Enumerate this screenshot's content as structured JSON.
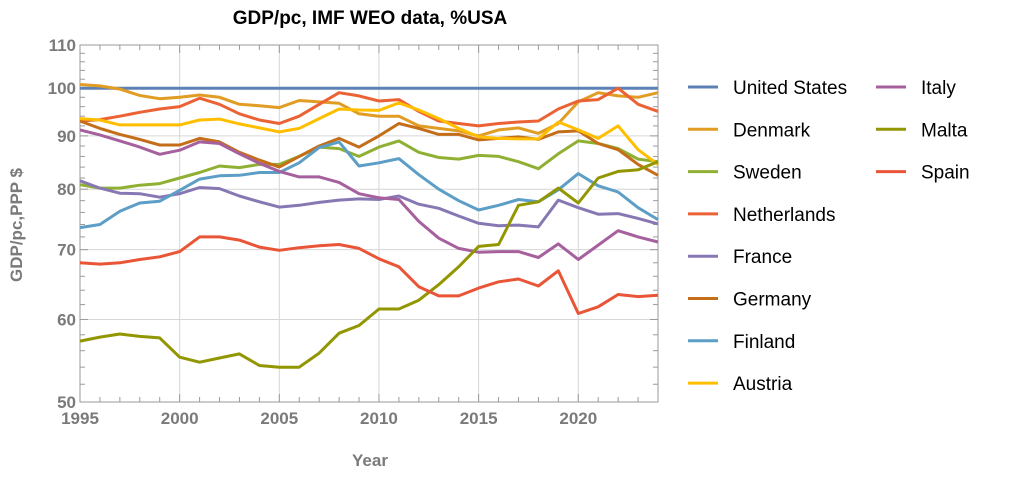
{
  "chart_data": {
    "type": "line",
    "title": "GDP/pc, IMF WEO data, %USA",
    "xlabel": "Year",
    "ylabel": "GDP/pc,PPP $",
    "xlim": [
      1995,
      2024
    ],
    "ylim": [
      50,
      110
    ],
    "yscale": "log",
    "grid": true,
    "legend_placement": "right",
    "x_ticks": [
      "1995",
      "2000",
      "2005",
      "2010",
      "2015",
      "2020"
    ],
    "y_ticks": [
      "50",
      "60",
      "70",
      "80",
      "90",
      "100",
      "110"
    ],
    "x": [
      1995,
      1996,
      1997,
      1998,
      1999,
      2000,
      2001,
      2002,
      2003,
      2004,
      2005,
      2006,
      2007,
      2008,
      2009,
      2010,
      2011,
      2012,
      2013,
      2014,
      2015,
      2016,
      2017,
      2018,
      2019,
      2020,
      2021,
      2022,
      2023,
      2024
    ],
    "series": [
      {
        "name": "United States",
        "color": "#5E81B5",
        "values": [
          100,
          100,
          100,
          100,
          100,
          100,
          100,
          100,
          100,
          100,
          100,
          100,
          100,
          100,
          100,
          100,
          100,
          100,
          100,
          100,
          100,
          100,
          100,
          100,
          100,
          100,
          100,
          100,
          100,
          100
        ]
      },
      {
        "name": "Denmark",
        "color": "#E19C24",
        "values": [
          100.8,
          100.5,
          99.8,
          98.4,
          97.7,
          98,
          98.5,
          98,
          96.5,
          96.2,
          95.8,
          97.3,
          97,
          96.7,
          94.5,
          94,
          94,
          92,
          91.5,
          91,
          90,
          91.2,
          91.6,
          90.5,
          92.5,
          97,
          99,
          98.3,
          98,
          99
        ]
      },
      {
        "name": "Sweden",
        "color": "#8FB032",
        "values": [
          80.8,
          80.2,
          80.2,
          80.7,
          81,
          82,
          83,
          84.2,
          83.9,
          84.5,
          84.5,
          86,
          87.8,
          87.5,
          86,
          87.8,
          89,
          86.8,
          85.8,
          85.5,
          86.2,
          86,
          85,
          83.7,
          86.5,
          89,
          88.5,
          87.5,
          85.5,
          85
        ]
      },
      {
        "name": "Netherlands",
        "color": "#EB6235",
        "values": [
          93,
          93.3,
          94,
          94.8,
          95.5,
          96,
          97.8,
          96.5,
          94.5,
          93.2,
          92.5,
          94,
          96.5,
          99,
          98.3,
          97.2,
          97.5,
          95,
          93,
          92.5,
          92,
          92.5,
          92.8,
          93,
          95.5,
          97.2,
          97.5,
          100,
          96.5,
          95
        ]
      },
      {
        "name": "France",
        "color": "#8778B3",
        "values": [
          81.5,
          80.2,
          79.3,
          79.2,
          78.6,
          79.2,
          80.3,
          80.1,
          78.8,
          77.8,
          76.9,
          77.2,
          77.7,
          78.1,
          78.3,
          78.2,
          78.8,
          77.4,
          76.7,
          75.4,
          74.2,
          73.8,
          73.9,
          73.6,
          78.1,
          76.8,
          75.7,
          75.8,
          75,
          74.1
        ]
      },
      {
        "name": "Germany",
        "color": "#C56E1A",
        "values": [
          93,
          91.5,
          90.3,
          89.3,
          88.2,
          88.2,
          89.5,
          88.8,
          86.8,
          85.3,
          84,
          86,
          88,
          89.5,
          87.8,
          90,
          92.5,
          91.5,
          90.3,
          90.3,
          89.2,
          89.5,
          89.8,
          89.3,
          90.8,
          91,
          88.5,
          87.3,
          84.5,
          82.5
        ]
      },
      {
        "name": "Finland",
        "color": "#5D9EC7",
        "values": [
          73.5,
          74,
          76.2,
          77.6,
          77.9,
          79.8,
          81.8,
          82.4,
          82.5,
          83,
          83,
          84.8,
          87.7,
          88.8,
          84.2,
          84.8,
          85.6,
          82.6,
          80,
          78,
          76.4,
          77.2,
          78.2,
          77.8,
          79.9,
          82.8,
          80.6,
          79.5,
          76.8,
          74.8
        ]
      },
      {
        "name": "Austria",
        "color": "#FFBF00",
        "values": [
          93.5,
          93.2,
          92.2,
          92.2,
          92.2,
          92.2,
          93.2,
          93.4,
          92.4,
          91.6,
          90.8,
          91.5,
          93.5,
          95.5,
          95.3,
          95.2,
          96.8,
          95.3,
          93.5,
          91.5,
          89.8,
          89.5,
          89.4,
          89.4,
          92.8,
          91.2,
          89.5,
          92,
          87.3,
          84.5
        ]
      },
      {
        "name": "Italy",
        "color": "#A5609D",
        "values": [
          91.2,
          90.2,
          89,
          87.8,
          86.4,
          87.2,
          88.8,
          88.5,
          86.5,
          84.7,
          83.2,
          82.2,
          82.2,
          81.2,
          79.2,
          78.5,
          78.2,
          74.5,
          71.8,
          70.2,
          69.6,
          69.7,
          69.7,
          68.8,
          70.9,
          68.5,
          70.7,
          73,
          72,
          71.2
        ]
      },
      {
        "name": "Malta",
        "color": "#929600",
        "values": [
          57.2,
          57.7,
          58.1,
          57.8,
          57.6,
          55.2,
          54.6,
          55.1,
          55.6,
          54.2,
          54,
          54,
          55.7,
          58.2,
          59.2,
          61.4,
          61.4,
          62.6,
          64.8,
          67.4,
          70.5,
          70.8,
          77.2,
          77.8,
          80.2,
          77.6,
          82,
          83.2,
          83.5,
          85
        ]
      },
      {
        "name": "Spain",
        "color": "#E95536",
        "values": [
          68,
          67.8,
          68,
          68.5,
          68.9,
          69.7,
          72,
          72,
          71.5,
          70.4,
          69.9,
          70.3,
          70.6,
          70.8,
          70.2,
          68.6,
          67.4,
          64.5,
          63.2,
          63.2,
          64.3,
          65.2,
          65.6,
          64.6,
          66.8,
          60.8,
          61.7,
          63.4,
          63.1,
          63.3
        ]
      }
    ]
  }
}
